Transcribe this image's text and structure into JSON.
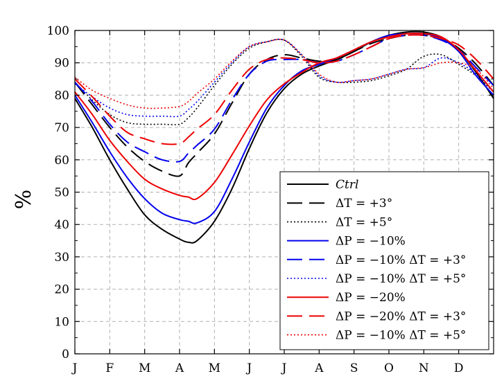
{
  "chart_data": {
    "type": "line",
    "title": "",
    "xlabel": "",
    "ylabel": "%",
    "xlim": [
      0,
      12
    ],
    "ylim": [
      0,
      100
    ],
    "x_tick_labels": [
      "J",
      "F",
      "M",
      "A",
      "M",
      "J",
      "J",
      "A",
      "S",
      "O",
      "N",
      "D"
    ],
    "y_ticks": [
      0,
      10,
      20,
      30,
      40,
      50,
      60,
      70,
      80,
      90,
      100
    ],
    "grid": true,
    "legend_position": "bottom-right",
    "x": [
      0,
      0.5,
      1,
      1.5,
      2,
      2.5,
      3,
      3.25,
      3.5,
      4,
      4.5,
      5,
      5.5,
      6,
      6.5,
      7,
      7.5,
      8,
      8.5,
      9,
      9.5,
      10,
      10.5,
      11,
      11.5,
      12
    ],
    "series": [
      {
        "name": "Ctrl",
        "color": "#000000",
        "dash": "solid",
        "values": [
          79,
          70,
          60,
          51,
          43,
          38.5,
          35.5,
          34.5,
          35,
          41,
          51,
          63.5,
          74.5,
          82,
          86.5,
          89,
          91,
          93.5,
          96.5,
          98.5,
          99.5,
          99.5,
          98,
          94,
          87,
          79
        ]
      },
      {
        "name": "ΔT = +3°",
        "color": "#000000",
        "dash": "long",
        "values": [
          84,
          77,
          70,
          64,
          59.5,
          56.5,
          55,
          59,
          62,
          68,
          77.5,
          86.5,
          91,
          92.5,
          91.5,
          90.5,
          91,
          93.5,
          96,
          97.5,
          98.5,
          98.5,
          97.5,
          94.5,
          89.5,
          83
        ]
      },
      {
        "name": "ΔT = +5°",
        "color": "#000000",
        "dash": "dotted",
        "values": [
          84,
          78.5,
          74,
          71.5,
          71,
          71,
          71,
          73,
          76,
          83,
          89.5,
          94.5,
          96.5,
          97,
          92,
          85.5,
          84,
          84,
          84.5,
          86,
          88,
          92,
          92.5,
          89.5,
          86,
          81
        ]
      },
      {
        "name": "ΔP = −10%",
        "color": "#0000ee",
        "dash": "solid",
        "values": [
          80,
          71.5,
          62.5,
          54.5,
          48,
          43.5,
          41.5,
          41,
          40.5,
          44,
          54,
          65.5,
          76,
          83,
          87.5,
          89.5,
          91.5,
          94,
          96.5,
          98.5,
          99,
          99,
          97.5,
          93.5,
          86,
          80
        ]
      },
      {
        "name": "ΔP = −10% ΔT = +3°",
        "color": "#0000ee",
        "dash": "long",
        "values": [
          84,
          78,
          71,
          65.5,
          62.5,
          60,
          59.5,
          62,
          64.5,
          69.5,
          78.5,
          86.5,
          90.5,
          91,
          91,
          90,
          90.5,
          92.5,
          95,
          97.5,
          98.5,
          98.5,
          97,
          94,
          88.5,
          83
        ]
      },
      {
        "name": "ΔP = −10% ΔT = +5°",
        "color": "#0000ee",
        "dash": "dotted",
        "values": [
          83.5,
          79.5,
          76,
          74,
          73.5,
          73.5,
          73.5,
          75.5,
          78,
          84,
          90,
          95,
          96.5,
          97,
          92.5,
          86,
          84,
          84.5,
          85,
          86.5,
          88,
          88.5,
          91.5,
          90,
          86.5,
          81
        ]
      },
      {
        "name": "ΔP = −20%",
        "color": "#ee0000",
        "dash": "solid",
        "values": [
          81,
          74,
          66,
          59.5,
          54,
          51,
          49,
          48.5,
          48,
          53,
          61.5,
          70.5,
          78.5,
          83.5,
          87,
          90,
          91.5,
          94,
          96.5,
          98,
          99,
          99,
          98,
          94,
          87.5,
          81
        ]
      },
      {
        "name": "ΔP = −20% ΔT = +3°",
        "color": "#ee0000",
        "dash": "long",
        "values": [
          85,
          79.5,
          73.5,
          68.5,
          66.5,
          65,
          65,
          67,
          69.5,
          74,
          81.5,
          88,
          91,
          91.5,
          91,
          90,
          90.5,
          92.5,
          95,
          97.5,
          98.5,
          98.5,
          97.5,
          95.5,
          91,
          85
        ]
      },
      {
        "name": "ΔP = −10% ΔT = +5°",
        "color": "#ee0000",
        "dash": "dotted",
        "values": [
          85.5,
          81.5,
          79,
          77,
          76,
          76,
          76.5,
          78,
          80.5,
          85,
          90.5,
          95,
          96.5,
          97,
          92.5,
          86.5,
          84,
          84.5,
          85,
          86.5,
          88,
          88.5,
          90,
          90,
          88,
          82
        ]
      }
    ]
  }
}
